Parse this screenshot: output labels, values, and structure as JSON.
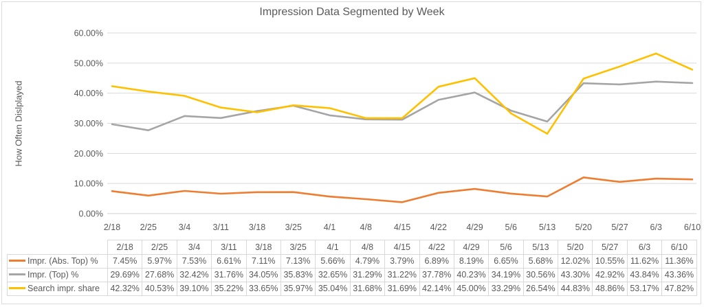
{
  "frame": {
    "background": "#FFFFFF",
    "border_color": "#DCDCDC"
  },
  "colors": {
    "grid": "#D9D9D9",
    "axis": "#D0D0D0",
    "text": "#595959",
    "table_border": "#D9D9D9"
  },
  "chart_data": {
    "type": "line",
    "title": "Impression Data Segmented by Week",
    "xlabel": "",
    "ylabel": "How Often Dislplayed",
    "ylim": [
      0,
      60
    ],
    "y_tick_labels": [
      "0.00%",
      "10.00%",
      "20.00%",
      "30.00%",
      "40.00%",
      "50.00%",
      "60.00%"
    ],
    "grid": true,
    "legend_position": "data-table-left-keys",
    "categories": [
      "2/18",
      "2/25",
      "3/4",
      "3/11",
      "3/18",
      "3/25",
      "4/1",
      "4/8",
      "4/15",
      "4/22",
      "4/29",
      "5/6",
      "5/13",
      "5/20",
      "5/27",
      "6/3",
      "6/10"
    ],
    "series": [
      {
        "name": "Impr. (Abs. Top) %",
        "color": "#ED7D31",
        "values": [
          7.45,
          5.97,
          7.53,
          6.61,
          7.11,
          7.13,
          5.66,
          4.79,
          3.79,
          6.89,
          8.19,
          6.65,
          5.68,
          12.02,
          10.55,
          11.62,
          11.36
        ],
        "labels": [
          "7.45%",
          "5.97%",
          "7.53%",
          "6.61%",
          "7.11%",
          "7.13%",
          "5.66%",
          "4.79%",
          "3.79%",
          "6.89%",
          "8.19%",
          "6.65%",
          "5.68%",
          "12.02%",
          "10.55%",
          "11.62%",
          "11.36%"
        ]
      },
      {
        "name": "Impr. (Top) %",
        "color": "#A5A5A5",
        "values": [
          29.69,
          27.68,
          32.42,
          31.76,
          34.05,
          35.83,
          32.65,
          31.29,
          31.22,
          37.78,
          40.23,
          34.19,
          30.56,
          43.3,
          42.92,
          43.84,
          43.36
        ],
        "labels": [
          "29.69%",
          "27.68%",
          "32.42%",
          "31.76%",
          "34.05%",
          "35.83%",
          "32.65%",
          "31.29%",
          "31.22%",
          "37.78%",
          "40.23%",
          "34.19%",
          "30.56%",
          "43.30%",
          "42.92%",
          "43.84%",
          "43.36%"
        ]
      },
      {
        "name": "Search impr. share",
        "color": "#FFC000",
        "values": [
          42.32,
          40.53,
          39.1,
          35.22,
          33.65,
          35.97,
          35.04,
          31.68,
          31.69,
          42.14,
          45.0,
          33.29,
          26.54,
          44.83,
          48.86,
          53.17,
          47.82
        ],
        "labels": [
          "42.32%",
          "40.53%",
          "39.10%",
          "35.22%",
          "33.65%",
          "35.97%",
          "35.04%",
          "31.68%",
          "31.69%",
          "42.14%",
          "45.00%",
          "33.29%",
          "26.54%",
          "44.83%",
          "48.86%",
          "53.17%",
          "47.82%"
        ]
      }
    ]
  }
}
